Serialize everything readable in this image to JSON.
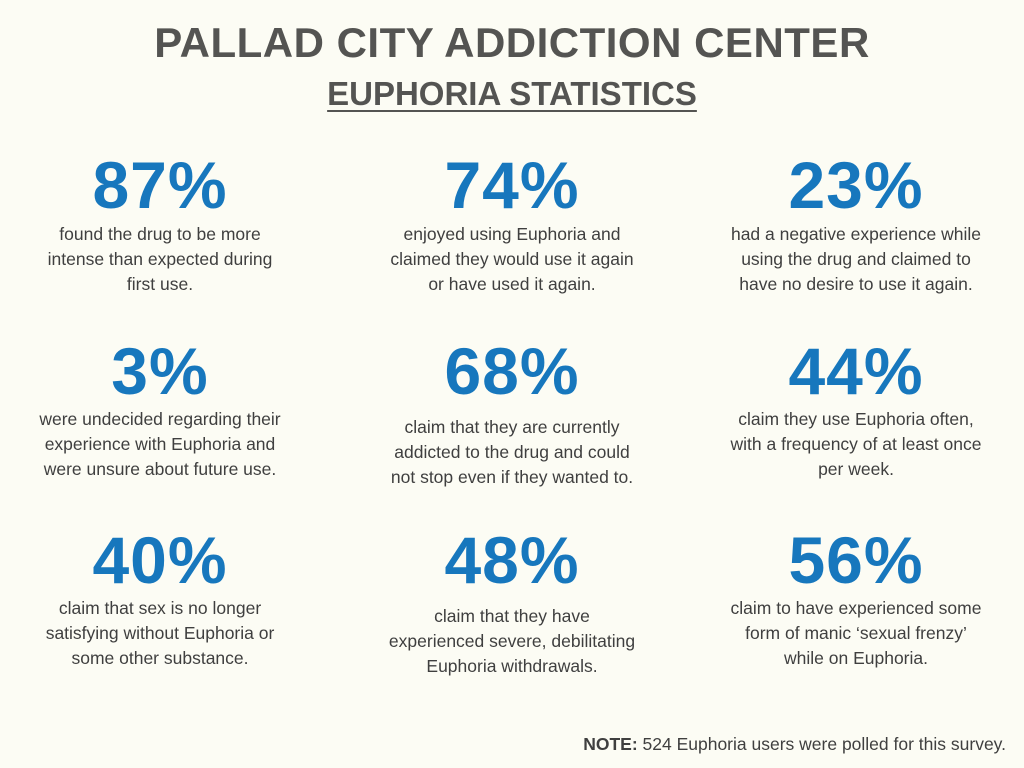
{
  "header": {
    "title": "PALLAD CITY ADDICTION CENTER",
    "subtitle": "EUPHORIA STATISTICS"
  },
  "stats": [
    {
      "value": "87%",
      "lines": [
        "found the drug to be more",
        "intense than expected during",
        "first use."
      ]
    },
    {
      "value": "74%",
      "lines": [
        "enjoyed using Euphoria and",
        "claimed they would use it again",
        "or have used it again."
      ]
    },
    {
      "value": "23%",
      "lines": [
        "had a negative experience while",
        "using the drug and claimed to",
        "have no desire to use it again."
      ]
    },
    {
      "value": "3%",
      "lines": [
        "were undecided regarding their",
        "experience with Euphoria and",
        "were unsure about future use."
      ]
    },
    {
      "value": "68%",
      "lines": [
        "claim that they are currently",
        "addicted to the drug and could",
        "not stop even if they wanted to."
      ]
    },
    {
      "value": "44%",
      "lines": [
        "claim they use Euphoria often,",
        "with a frequency of at least once",
        "per week."
      ]
    },
    {
      "value": "40%",
      "lines": [
        "claim that sex is no longer",
        "satisfying without Euphoria or",
        "some other substance."
      ]
    },
    {
      "value": "48%",
      "lines": [
        "claim that they have",
        "experienced severe, debilitating",
        "Euphoria withdrawals."
      ]
    },
    {
      "value": "56%",
      "lines": [
        "claim to have experienced some",
        "form of manic ‘sexual frenzy’",
        "while on Euphoria."
      ]
    }
  ],
  "footer": {
    "note_label": "NOTE:",
    "note_text": " 524 Euphoria users were polled for this survey."
  },
  "colors": {
    "background": "#FCFCF4",
    "heading": "#545452",
    "accent": "#1777BD",
    "body_text": "#3F3F3F"
  }
}
